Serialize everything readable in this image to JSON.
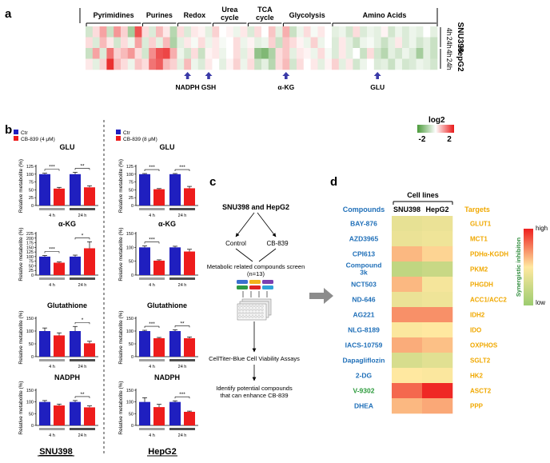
{
  "panel_labels": {
    "a": "a",
    "b": "b",
    "c": "c",
    "d": "d"
  },
  "chart_data": [
    {
      "id": "a",
      "type": "heatmap",
      "categories": [
        "Pyrimidines",
        "Purines",
        "Redox",
        "Urea cycle",
        "TCA cycle",
        "Glycolysis",
        "Amino Acids"
      ],
      "category_columns": [
        8,
        5,
        5,
        5,
        5,
        7,
        15
      ],
      "rows": [
        "4h",
        "24h",
        "4h",
        "24h"
      ],
      "cell_lines": [
        "SNU398",
        "HepG2"
      ],
      "columns": 50,
      "values": [
        [
          -0.5,
          0.3,
          0.8,
          -0.6,
          0.9,
          0.4,
          -1.0,
          1.5,
          0.3,
          -0.4,
          0.6,
          0.2,
          -0.8,
          0.3,
          -0.4,
          0.2,
          0.1,
          -0.3,
          0.4,
          0.0,
          0.1,
          -0.2,
          0.2,
          -0.4,
          0.3,
          0.0,
          0.5,
          -0.3,
          0.7,
          -0.6,
          -0.2,
          0.3,
          -0.1,
          0.2,
          0.0,
          -0.3,
          -0.2,
          -0.5,
          0.3,
          -0.4,
          -0.2,
          -0.3,
          0.1,
          -0.5,
          -0.2,
          -0.4,
          -0.2,
          -0.3,
          0.0,
          -0.3
        ],
        [
          0.3,
          -0.4,
          0.6,
          0.2,
          -0.5,
          0.3,
          -0.2,
          0.8,
          -0.4,
          0.4,
          -0.3,
          0.6,
          -0.9,
          -0.3,
          0.2,
          -0.1,
          0.3,
          -0.2,
          0.2,
          -0.1,
          0.0,
          0.3,
          -0.2,
          0.1,
          -0.3,
          -0.2,
          0.4,
          -0.6,
          0.5,
          0.3,
          0.1,
          -0.2,
          0.4,
          -0.2,
          0.0,
          -0.4,
          0.2,
          -0.3,
          -0.6,
          -0.2,
          -0.1,
          -0.3,
          -0.6,
          -0.3,
          0.2,
          -0.4,
          -0.2,
          -0.5,
          -0.3,
          -0.6
        ],
        [
          -0.6,
          0.8,
          -0.4,
          1.2,
          0.4,
          0.6,
          0.9,
          0.3,
          -0.5,
          1.0,
          1.5,
          1.6,
          0.7,
          -0.2,
          -0.5,
          0.3,
          -0.6,
          0.1,
          0.2,
          -0.2,
          0.0,
          0.3,
          -0.3,
          0.2,
          -1.2,
          -1.4,
          -0.9,
          0.3,
          0.5,
          -0.3,
          0.2,
          0.1,
          -0.2,
          0.3,
          -0.1,
          -0.4,
          0.2,
          -0.3,
          0.0,
          -0.6,
          0.3,
          -0.5,
          -0.8,
          -0.3,
          -0.5,
          -0.2,
          -0.4,
          -1.0,
          -0.3,
          -0.6
        ],
        [
          0.2,
          -0.3,
          0.4,
          1.8,
          0.6,
          0.3,
          -0.2,
          0.5,
          0.3,
          1.2,
          1.4,
          0.6,
          0.4,
          -0.3,
          0.6,
          -0.2,
          -0.4,
          0.2,
          0.0,
          -0.3,
          0.1,
          0.4,
          -0.2,
          0.3,
          -0.6,
          -0.3,
          -0.8,
          0.3,
          0.6,
          -0.5,
          0.3,
          0.0,
          0.2,
          -0.3,
          0.1,
          0.4,
          -0.3,
          0.2,
          -0.5,
          -0.2,
          0.0,
          -0.4,
          -0.3,
          -0.6,
          -0.2,
          -0.5,
          -0.4,
          -0.2,
          -0.3,
          -0.5
        ]
      ],
      "arrows": [
        {
          "label": "NADPH",
          "column": 14
        },
        {
          "label": "GSH",
          "column": 17
        },
        {
          "label": "α-KG",
          "column": 28
        },
        {
          "label": "GLU",
          "column": 41
        }
      ],
      "legend": {
        "title": "log2",
        "min_label": "-2",
        "max_label": "2",
        "min": -2,
        "max": 2
      }
    },
    {
      "id": "b",
      "type": "bar",
      "ylabel": "Relative metabolite (%)",
      "x_groups": [
        "4 h",
        "24 h"
      ],
      "cell_lines": [
        {
          "name": "SNU398",
          "legend": [
            "Ctr",
            "CB-839 (4 μM)"
          ]
        },
        {
          "name": "HepG2",
          "legend": [
            "Ctr",
            "CB-839 (8 μM)"
          ]
        }
      ],
      "panels": [
        {
          "line": 0,
          "title": "GLU",
          "ylim": [
            0,
            125
          ],
          "ticks": [
            0,
            25,
            50,
            75,
            100,
            125
          ],
          "ctr": [
            100,
            100
          ],
          "cb": [
            54,
            58
          ],
          "ctr_err": [
            3,
            6
          ],
          "cb_err": [
            4,
            5
          ],
          "sig": [
            "***",
            "**"
          ]
        },
        {
          "line": 0,
          "title": "α-KG",
          "ylim": [
            0,
            225
          ],
          "ticks": [
            0,
            25,
            50,
            75,
            100,
            125,
            150,
            175,
            200,
            225
          ],
          "ctr": [
            100,
            100
          ],
          "cb": [
            67,
            145
          ],
          "ctr_err": [
            6,
            8
          ],
          "cb_err": [
            4,
            35
          ],
          "sig": [
            "***",
            "*"
          ]
        },
        {
          "line": 0,
          "title": "Glutathione",
          "ylim": [
            0,
            150
          ],
          "ticks": [
            0,
            50,
            100,
            150
          ],
          "ctr": [
            100,
            100
          ],
          "cb": [
            83,
            52
          ],
          "ctr_err": [
            12,
            18
          ],
          "cb_err": [
            10,
            8
          ],
          "sig": [
            "",
            "*"
          ]
        },
        {
          "line": 0,
          "title": "NADPH",
          "ylim": [
            0,
            150
          ],
          "ticks": [
            0,
            50,
            100,
            150
          ],
          "ctr": [
            100,
            100
          ],
          "cb": [
            85,
            77
          ],
          "ctr_err": [
            6,
            6
          ],
          "cb_err": [
            6,
            6
          ],
          "sig": [
            "",
            "**"
          ]
        },
        {
          "line": 1,
          "title": "GLU",
          "ylim": [
            0,
            125
          ],
          "ticks": [
            0,
            25,
            50,
            75,
            100,
            125
          ],
          "ctr": [
            100,
            100
          ],
          "cb": [
            52,
            55
          ],
          "ctr_err": [
            2,
            2
          ],
          "cb_err": [
            2,
            6
          ],
          "sig": [
            "***",
            "***"
          ]
        },
        {
          "line": 1,
          "title": "α-KG",
          "ylim": [
            0,
            150
          ],
          "ticks": [
            0,
            50,
            100,
            150
          ],
          "ctr": [
            100,
            100
          ],
          "cb": [
            52,
            85
          ],
          "ctr_err": [
            5,
            4
          ],
          "cb_err": [
            3,
            8
          ],
          "sig": [
            "***",
            ""
          ]
        },
        {
          "line": 1,
          "title": "Glutathione",
          "ylim": [
            0,
            150
          ],
          "ticks": [
            0,
            50,
            100,
            150
          ],
          "ctr": [
            100,
            100
          ],
          "cb": [
            72,
            72
          ],
          "ctr_err": [
            3,
            5
          ],
          "cb_err": [
            3,
            5
          ],
          "sig": [
            "***",
            "**"
          ]
        },
        {
          "line": 1,
          "title": "NADPH",
          "ylim": [
            0,
            150
          ],
          "ticks": [
            0,
            50,
            100,
            150
          ],
          "ctr": [
            100,
            100
          ],
          "cb": [
            78,
            58
          ],
          "ctr_err": [
            18,
            5
          ],
          "cb_err": [
            12,
            3
          ],
          "sig": [
            "",
            "***"
          ]
        }
      ]
    },
    {
      "id": "d",
      "type": "heatmap",
      "title": "Cell lines",
      "compounds_header": "Compounds",
      "targets_header": "Targets",
      "columns": [
        "SNU398",
        "HepG2"
      ],
      "compounds": [
        "BAY-876",
        "AZD3965",
        "CPI613",
        "Compound 3k",
        "NCT503",
        "ND-646",
        "AG221",
        "NLG-8189",
        "IACS-10759",
        "Dapagliflozin",
        "2-DG",
        "V-9302",
        "DHEA"
      ],
      "targets": [
        "GLUT1",
        "MCT1",
        "PDHα-KGDH",
        "PKM2",
        "PHGDH",
        "ACC1/ACC2",
        "IDH2",
        "IDO",
        "OXPHOS",
        "SGLT2",
        "HK2",
        "ASCT2",
        "PPP"
      ],
      "values": [
        [
          0.38,
          0.4
        ],
        [
          0.4,
          0.42
        ],
        [
          0.62,
          0.55
        ],
        [
          0.18,
          0.22
        ],
        [
          0.62,
          0.45
        ],
        [
          0.4,
          0.42
        ],
        [
          0.72,
          0.72
        ],
        [
          0.48,
          0.5
        ],
        [
          0.65,
          0.6
        ],
        [
          0.3,
          0.35
        ],
        [
          0.5,
          0.48
        ],
        [
          0.82,
          0.98
        ],
        [
          0.62,
          0.66
        ]
      ],
      "legend": {
        "title": "Synergistic inhibiton",
        "high": "high",
        "low": "low"
      }
    }
  ],
  "panel_c": {
    "title": "SNU398 and HepG2",
    "branch_left": "Control",
    "branch_right": "CB-839",
    "screen_line1": "Metabolic related compounds screen",
    "screen_line2": "(n=13)",
    "assay": "CellTiter-Blue Cell Viability Assays",
    "identify_line1": "Identify potential compounds",
    "identify_line2": "that can enhance CB-839"
  },
  "colors": {
    "ctr": "#1f1fbf",
    "cb": "#ee1c1c",
    "compound_text": "#1f6fb8",
    "highlight_compound": "#2a9a3a",
    "target_text": "#f0a800",
    "arrow": "#3a3aa8"
  }
}
